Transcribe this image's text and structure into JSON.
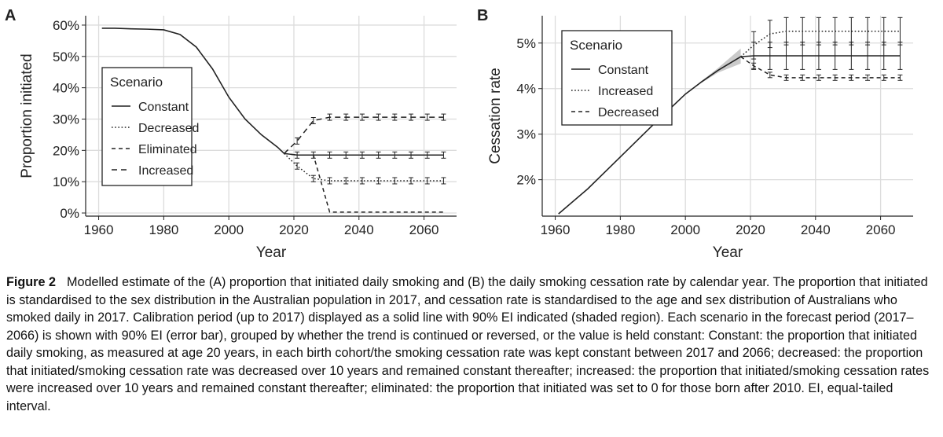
{
  "chart_data": [
    {
      "panel_label": "A",
      "type": "line",
      "xlabel": "Year",
      "ylabel": "Proportion initiated",
      "xlim": [
        1956,
        2070
      ],
      "ylim": [
        -1,
        63
      ],
      "xticks": [
        1960,
        1980,
        2000,
        2020,
        2040,
        2060
      ],
      "yticks": [
        0,
        10,
        20,
        30,
        40,
        50,
        60
      ],
      "ytick_labels": [
        "0%",
        "10%",
        "20%",
        "30%",
        "40%",
        "50%",
        "60%"
      ],
      "grid": true,
      "legend": {
        "title": "Scenario",
        "position": "center-left"
      },
      "calibration": {
        "x": [
          1961,
          1965,
          1970,
          1975,
          1980,
          1985,
          1990,
          1995,
          2000,
          2005,
          2010,
          2015,
          2017
        ],
        "y": [
          59,
          59,
          58.8,
          58.7,
          58.5,
          57,
          53,
          46,
          37,
          30,
          25,
          21,
          19
        ]
      },
      "series": [
        {
          "name": "Constant",
          "style": "solid",
          "x": [
            2017,
            2021,
            2026,
            2031,
            2036,
            2041,
            2046,
            2051,
            2056,
            2061,
            2066
          ],
          "y": [
            19,
            18.5,
            18.5,
            18.5,
            18.5,
            18.5,
            18.5,
            18.5,
            18.5,
            18.5,
            18.5
          ],
          "err": 1
        },
        {
          "name": "Decreased",
          "style": "dotted",
          "x": [
            2017,
            2021,
            2026,
            2031,
            2036,
            2041,
            2046,
            2051,
            2056,
            2061,
            2066
          ],
          "y": [
            19,
            15,
            11,
            10.3,
            10.3,
            10.3,
            10.3,
            10.3,
            10.3,
            10.3,
            10.3
          ],
          "err": 1
        },
        {
          "name": "Eliminated",
          "style": "dashed",
          "x": [
            2017,
            2021,
            2026,
            2031,
            2036,
            2041,
            2046,
            2051,
            2056,
            2061,
            2066
          ],
          "y": [
            19,
            18.5,
            18.5,
            0.3,
            0.3,
            0.3,
            0.3,
            0.3,
            0.3,
            0.3,
            0.3
          ],
          "err": 0
        },
        {
          "name": "Increased",
          "style": "longdash",
          "x": [
            2017,
            2021,
            2026,
            2031,
            2036,
            2041,
            2046,
            2051,
            2056,
            2061,
            2066
          ],
          "y": [
            19,
            23,
            29.5,
            30.6,
            30.6,
            30.6,
            30.6,
            30.6,
            30.6,
            30.6,
            30.6
          ],
          "err": 1
        }
      ]
    },
    {
      "panel_label": "B",
      "type": "line",
      "xlabel": "Year",
      "ylabel": "Cessation rate",
      "xlim": [
        1956,
        2070
      ],
      "ylim": [
        1.2,
        5.6
      ],
      "xticks": [
        1960,
        1980,
        2000,
        2020,
        2040,
        2060
      ],
      "yticks": [
        2,
        3,
        4,
        5
      ],
      "ytick_labels": [
        "2%",
        "3%",
        "4%",
        "5%"
      ],
      "grid": true,
      "legend": {
        "title": "Scenario",
        "position": "top-left"
      },
      "calibration": {
        "x": [
          1961,
          1970,
          1980,
          1990,
          2000,
          2005,
          2010,
          2017
        ],
        "y": [
          1.25,
          1.8,
          2.5,
          3.2,
          3.88,
          4.15,
          4.4,
          4.7
        ],
        "band_low": [
          1.25,
          1.8,
          2.5,
          3.2,
          3.88,
          4.13,
          4.35,
          4.55
        ],
        "band_high": [
          1.25,
          1.8,
          2.5,
          3.2,
          3.88,
          4.17,
          4.45,
          4.88
        ]
      },
      "series": [
        {
          "name": "Constant",
          "style": "solid",
          "x": [
            2017,
            2021,
            2026,
            2031,
            2036,
            2041,
            2046,
            2051,
            2056,
            2061,
            2066
          ],
          "y": [
            4.7,
            4.72,
            4.72,
            4.72,
            4.72,
            4.72,
            4.72,
            4.72,
            4.72,
            4.72,
            4.72
          ],
          "err": 0.3
        },
        {
          "name": "Increased",
          "style": "dotted",
          "x": [
            2017,
            2021,
            2026,
            2031,
            2036,
            2041,
            2046,
            2051,
            2056,
            2061,
            2066
          ],
          "y": [
            4.7,
            4.95,
            5.2,
            5.26,
            5.26,
            5.26,
            5.26,
            5.26,
            5.26,
            5.26,
            5.26
          ],
          "err": 0.3
        },
        {
          "name": "Decreased",
          "style": "dashed",
          "x": [
            2017,
            2021,
            2026,
            2031,
            2036,
            2041,
            2046,
            2051,
            2056,
            2061,
            2066
          ],
          "y": [
            4.7,
            4.5,
            4.3,
            4.24,
            4.24,
            4.24,
            4.24,
            4.24,
            4.24,
            4.24,
            4.24
          ],
          "err": 0.06
        }
      ]
    }
  ],
  "caption": {
    "label": "Figure 2",
    "text": "Modelled estimate of the (A) proportion that initiated daily smoking and (B) the daily smoking cessation rate by calendar year. The proportion that initiated is standardised to the sex distribution in the Australian population in 2017, and cessation rate is standardised to the age and sex distribution of Australians who smoked daily in 2017. Calibration period (up to 2017) displayed as a solid line with 90% EI indicated (shaded region). Each scenario in the forecast period (2017–2066) is shown with 90% EI (error bar), grouped by whether the trend is continued or reversed, or the value is held constant: Constant: the proportion that initiated daily smoking, as measured at age 20 years, in each birth cohort/the smoking cessation rate was kept constant between 2017 and 2066; decreased: the proportion that initiated/smoking cessation rate was decreased over 10 years and remained constant thereafter; increased: the proportion that initiated/smoking cessation rates were increased over 10 years and remained constant thereafter; eliminated: the proportion that initiated was set to 0 for those born after 2010. EI, equal-tailed interval."
  }
}
